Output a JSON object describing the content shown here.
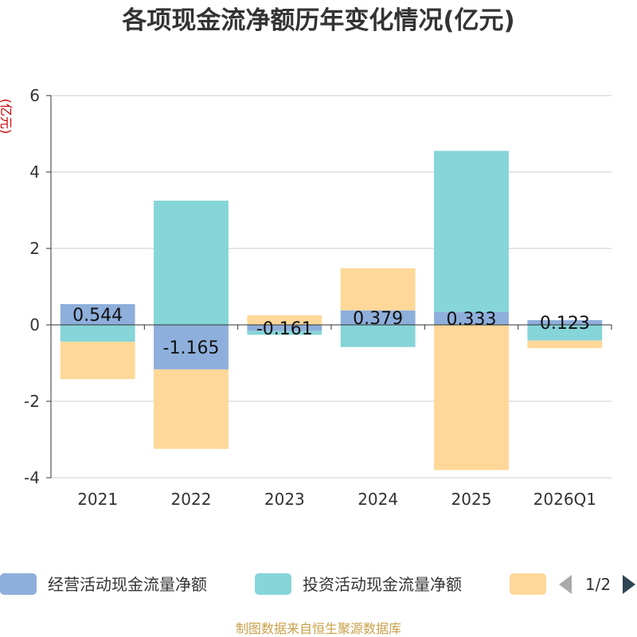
{
  "chart_data": {
    "type": "bar",
    "stacked": true,
    "title": "各项现金流净额历年变化情况(亿元)",
    "ylabel": "(亿元)",
    "xlabel": "",
    "ylim": [
      -4,
      6
    ],
    "yticks": [
      -4,
      -2,
      0,
      2,
      4,
      6
    ],
    "grid": true,
    "categories": [
      "2021",
      "2022",
      "2023",
      "2024",
      "2025",
      "2026Q1"
    ],
    "series": [
      {
        "name": "经营活动现金流量净额",
        "color": "#8eafdb",
        "values": [
          0.544,
          -1.165,
          -0.161,
          0.379,
          0.333,
          0.123
        ],
        "labels": [
          "0.544",
          "-1.165",
          "-0.161",
          "0.379",
          "0.333",
          "0.123"
        ]
      },
      {
        "name": "投资活动现金流量净额",
        "color": "#86d5d8",
        "values": [
          -0.44,
          3.25,
          -0.1,
          -0.58,
          4.22,
          -0.41
        ]
      },
      {
        "name": "",
        "color": "#ffd899",
        "values": [
          -0.98,
          -2.08,
          0.25,
          1.1,
          -3.8,
          -0.2
        ]
      }
    ],
    "legend": {
      "position": "bottom",
      "page": "1/2"
    },
    "source": "制图数据来自恒生聚源数据库"
  }
}
